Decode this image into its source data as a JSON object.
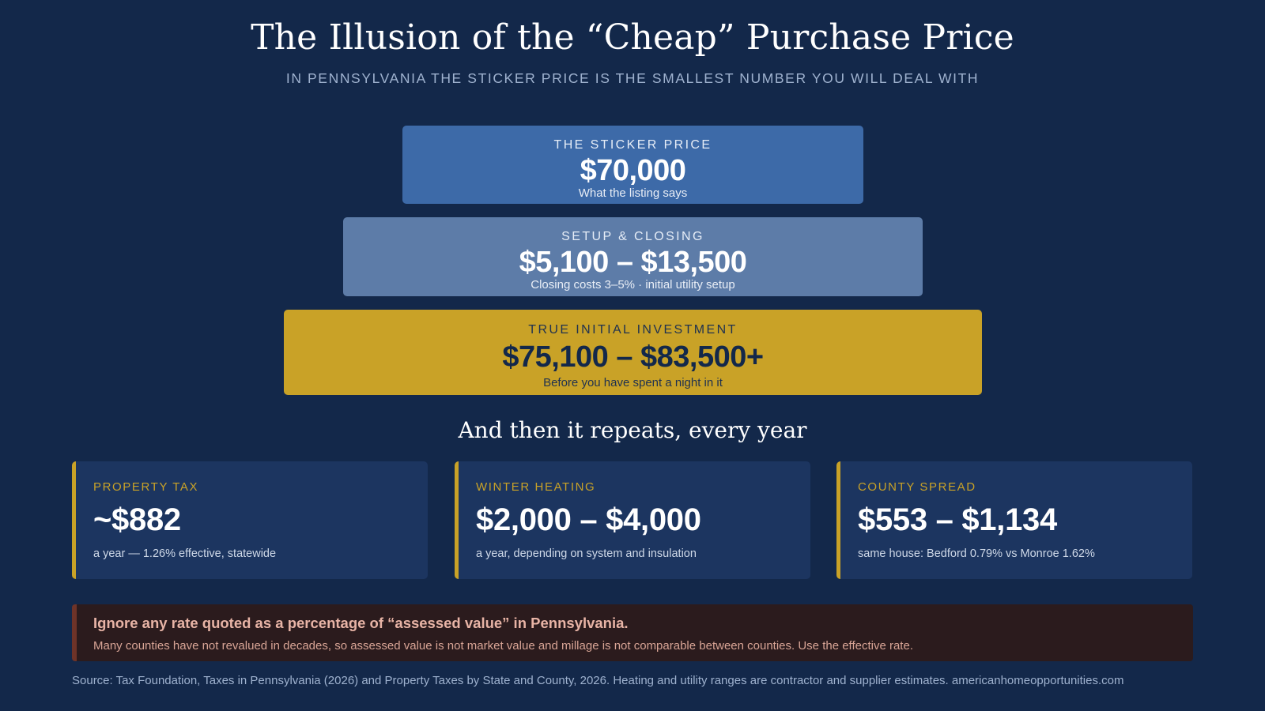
{
  "header": {
    "title": "The Illusion of the “Cheap” Purchase Price",
    "subtitle": "IN PENNSYLVANIA THE STICKER PRICE IS THE SMALLEST NUMBER YOU WILL DEAL WITH"
  },
  "tiers": [
    {
      "label": "THE STICKER PRICE",
      "value": "$70,000",
      "note": "What the listing says",
      "color": "#3d6aa8"
    },
    {
      "label": "SETUP & CLOSING",
      "value": "$5,100 – $13,500",
      "note": "Closing costs 3–5% · initial utility setup",
      "color": "#5d7ca8"
    },
    {
      "label": "TRUE INITIAL INVESTMENT",
      "value": "$75,100 – $83,500+",
      "note": "Before you have spent a night in it",
      "color": "#c9a227"
    }
  ],
  "section_title": "And then it repeats, every year",
  "cards": [
    {
      "label": "PROPERTY TAX",
      "value": "~$882",
      "note": "a year — 1.26% effective, statewide"
    },
    {
      "label": "WINTER HEATING",
      "value": "$2,000 – $4,000",
      "note": "a year, depending on system and insulation"
    },
    {
      "label": "COUNTY SPREAD",
      "value": "$553 – $1,134",
      "note": "same house: Bedford 0.79% vs Monroe 1.62%"
    }
  ],
  "warning": {
    "title": "Ignore any rate quoted as a percentage of “assessed value” in Pennsylvania.",
    "body": "Many counties have not revalued in decades, so assessed value is not market value and millage is not comparable between counties. Use the effective rate."
  },
  "source": "Source: Tax Foundation, Taxes in Pennsylvania (2026) and Property Taxes by State and County, 2026. Heating and utility ranges are contractor and supplier estimates. americanhomeopportunities.com",
  "colors": {
    "background": "#13284a",
    "accent_gold": "#c9a227",
    "card_bg": "#1c3560",
    "warning_bg": "#2b1b1d"
  }
}
